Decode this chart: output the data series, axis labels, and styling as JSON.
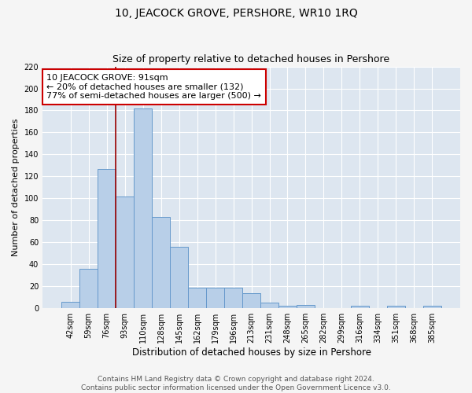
{
  "title": "10, JEACOCK GROVE, PERSHORE, WR10 1RQ",
  "subtitle": "Size of property relative to detached houses in Pershore",
  "xlabel": "Distribution of detached houses by size in Pershore",
  "ylabel": "Number of detached properties",
  "bar_labels": [
    "42sqm",
    "59sqm",
    "76sqm",
    "93sqm",
    "110sqm",
    "128sqm",
    "145sqm",
    "162sqm",
    "179sqm",
    "196sqm",
    "213sqm",
    "231sqm",
    "248sqm",
    "265sqm",
    "282sqm",
    "299sqm",
    "316sqm",
    "334sqm",
    "351sqm",
    "368sqm",
    "385sqm"
  ],
  "bar_values": [
    6,
    36,
    127,
    102,
    182,
    83,
    56,
    19,
    19,
    19,
    14,
    5,
    2,
    3,
    0,
    0,
    2,
    0,
    2,
    0,
    2
  ],
  "bar_color": "#b8cfe8",
  "bar_edge_color": "#6699cc",
  "background_color": "#dde6f0",
  "fig_background_color": "#f5f5f5",
  "grid_color": "#ffffff",
  "vline_color": "#990000",
  "vline_x": 2.5,
  "annotation_text": "10 JEACOCK GROVE: 91sqm\n← 20% of detached houses are smaller (132)\n77% of semi-detached houses are larger (500) →",
  "annotation_box_facecolor": "#ffffff",
  "annotation_box_edgecolor": "#cc0000",
  "ylim": [
    0,
    220
  ],
  "yticks": [
    0,
    20,
    40,
    60,
    80,
    100,
    120,
    140,
    160,
    180,
    200,
    220
  ],
  "footer_text": "Contains HM Land Registry data © Crown copyright and database right 2024.\nContains public sector information licensed under the Open Government Licence v3.0.",
  "title_fontsize": 10,
  "subtitle_fontsize": 9,
  "ylabel_fontsize": 8,
  "xlabel_fontsize": 8.5,
  "tick_fontsize": 7,
  "annotation_fontsize": 8,
  "footer_fontsize": 6.5
}
